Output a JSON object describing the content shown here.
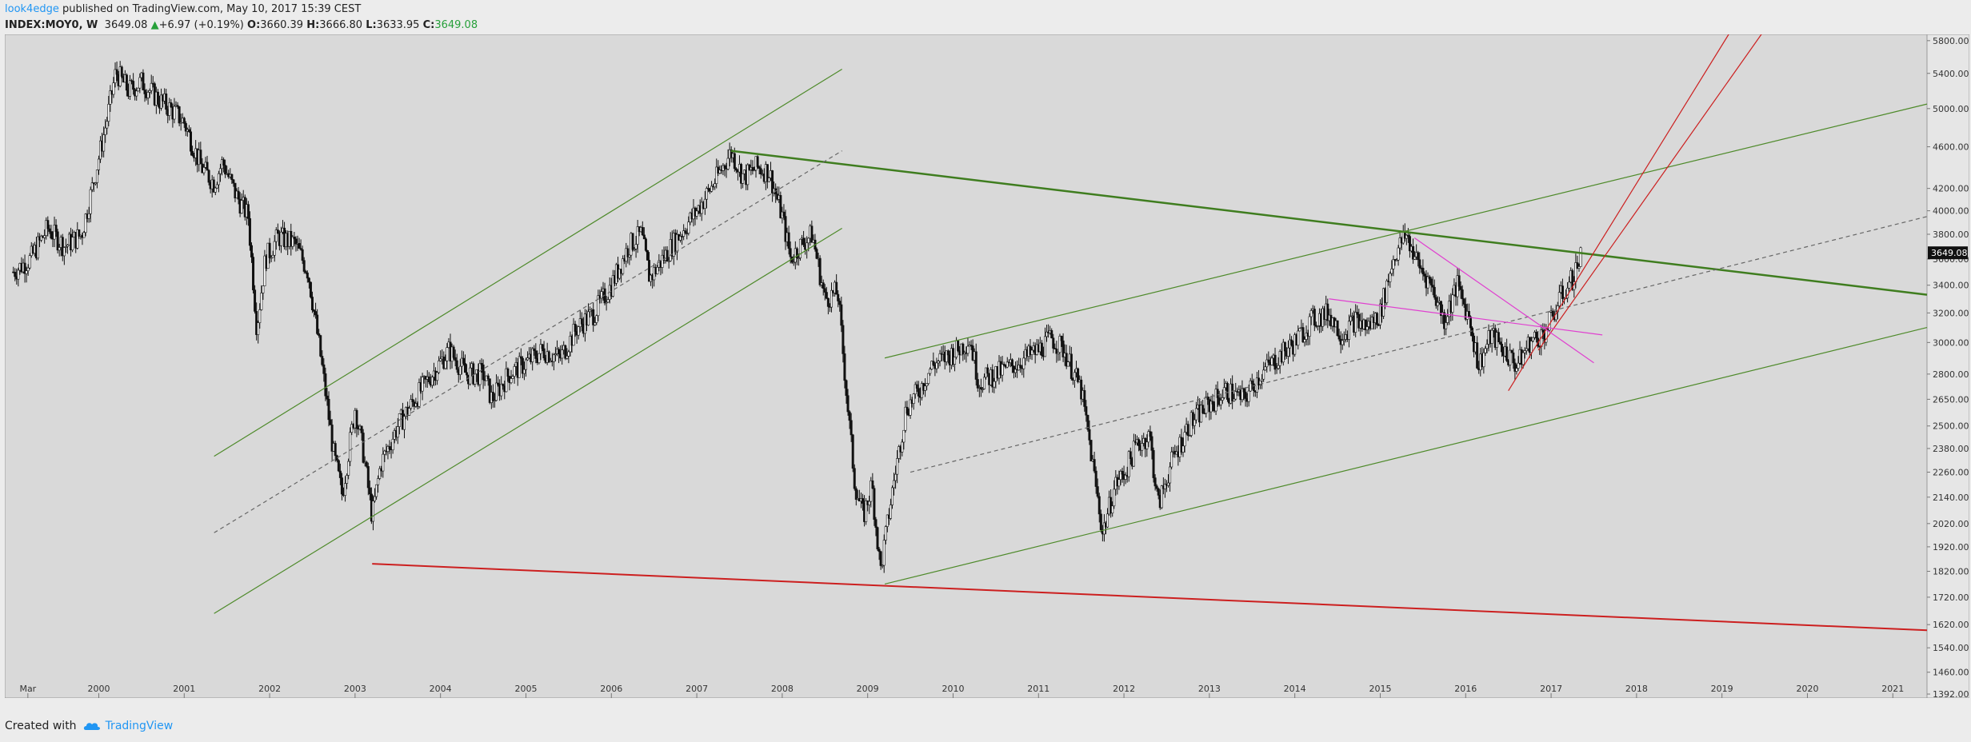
{
  "header": {
    "author": "look4edge",
    "published": " published on TradingView.com, May 10, 2017 15:39 CEST",
    "symbol": "INDEX:MOY0, W",
    "last": "3649.08",
    "change": "+6.97 (+0.19%)",
    "o_label": "O:",
    "o_val": "3660.39",
    "h_label": "H:",
    "h_val": "3666.80",
    "l_label": "L:",
    "l_val": "3633.95",
    "c_label": "C:",
    "c_val": "3649.08"
  },
  "colors": {
    "candle": "#111111",
    "up_arrow": "#27a03a",
    "channel_green": "#4e8a2a",
    "red": "#cc1f1f",
    "magenta": "#e040d0",
    "bg": "#d9d9d9"
  },
  "chart_data": {
    "type": "candlestick",
    "y_scale": "log",
    "ylim": [
      1380,
      5880
    ],
    "xlim": [
      1998.9,
      2021.4
    ],
    "x_ticks": [
      {
        "label": "Mar",
        "x": 1999.17
      },
      {
        "label": "2000",
        "x": 2000.0
      },
      {
        "label": "2001",
        "x": 2001.0
      },
      {
        "label": "2002",
        "x": 2002.0
      },
      {
        "label": "2003",
        "x": 2003.0
      },
      {
        "label": "2004",
        "x": 2004.0
      },
      {
        "label": "2005",
        "x": 2005.0
      },
      {
        "label": "2006",
        "x": 2006.0
      },
      {
        "label": "2007",
        "x": 2007.0
      },
      {
        "label": "2008",
        "x": 2008.0
      },
      {
        "label": "2009",
        "x": 2009.0
      },
      {
        "label": "2010",
        "x": 2010.0
      },
      {
        "label": "2011",
        "x": 2011.0
      },
      {
        "label": "2012",
        "x": 2012.0
      },
      {
        "label": "2013",
        "x": 2013.0
      },
      {
        "label": "2014",
        "x": 2014.0
      },
      {
        "label": "2015",
        "x": 2015.0
      },
      {
        "label": "2016",
        "x": 2016.0
      },
      {
        "label": "2017",
        "x": 2017.0
      },
      {
        "label": "2018",
        "x": 2018.0
      },
      {
        "label": "2019",
        "x": 2019.0
      },
      {
        "label": "2020",
        "x": 2020.0
      },
      {
        "label": "2021",
        "x": 2021.0
      }
    ],
    "y_ticks": [
      "5800.00",
      "5400.00",
      "5000.00",
      "4600.00",
      "4200.00",
      "4000.00",
      "3800.00",
      "3600.00",
      "3400.00",
      "3200.00",
      "3000.00",
      "2800.00",
      "2650.00",
      "2500.00",
      "2380.00",
      "2260.00",
      "2140.00",
      "2020.00",
      "1920.00",
      "1820.00",
      "1720.00",
      "1620.00",
      "1540.00",
      "1460.00",
      "1392.00"
    ],
    "last_price_label": "3649.08",
    "price_path": [
      [
        1999.0,
        3500
      ],
      [
        1999.2,
        3600
      ],
      [
        1999.4,
        3850
      ],
      [
        1999.6,
        3700
      ],
      [
        1999.8,
        3800
      ],
      [
        1999.95,
        4300
      ],
      [
        2000.1,
        4900
      ],
      [
        2000.2,
        5420
      ],
      [
        2000.35,
        5200
      ],
      [
        2000.5,
        5300
      ],
      [
        2000.7,
        5100
      ],
      [
        2000.9,
        4950
      ],
      [
        2001.0,
        4850
      ],
      [
        2001.2,
        4400
      ],
      [
        2001.35,
        4250
      ],
      [
        2001.45,
        4450
      ],
      [
        2001.6,
        4150
      ],
      [
        2001.75,
        3950
      ],
      [
        2001.85,
        3100
      ],
      [
        2001.95,
        3600
      ],
      [
        2002.1,
        3780
      ],
      [
        2002.3,
        3720
      ],
      [
        2002.45,
        3500
      ],
      [
        2002.6,
        2900
      ],
      [
        2002.75,
        2350
      ],
      [
        2002.85,
        2150
      ],
      [
        2003.0,
        2600
      ],
      [
        2003.1,
        2350
      ],
      [
        2003.2,
        2050
      ],
      [
        2003.3,
        2300
      ],
      [
        2003.5,
        2500
      ],
      [
        2003.7,
        2650
      ],
      [
        2003.9,
        2800
      ],
      [
        2004.1,
        2950
      ],
      [
        2004.3,
        2800
      ],
      [
        2004.5,
        2800
      ],
      [
        2004.6,
        2650
      ],
      [
        2004.8,
        2800
      ],
      [
        2004.95,
        2850
      ],
      [
        2005.2,
        2950
      ],
      [
        2005.4,
        2900
      ],
      [
        2005.6,
        3100
      ],
      [
        2005.8,
        3200
      ],
      [
        2006.0,
        3400
      ],
      [
        2006.2,
        3700
      ],
      [
        2006.35,
        3800
      ],
      [
        2006.45,
        3450
      ],
      [
        2006.6,
        3600
      ],
      [
        2006.8,
        3800
      ],
      [
        2007.0,
        4000
      ],
      [
        2007.2,
        4250
      ],
      [
        2007.4,
        4550
      ],
      [
        2007.55,
        4300
      ],
      [
        2007.7,
        4400
      ],
      [
        2007.85,
        4350
      ],
      [
        2008.0,
        3950
      ],
      [
        2008.1,
        3600
      ],
      [
        2008.2,
        3700
      ],
      [
        2008.35,
        3800
      ],
      [
        2008.5,
        3300
      ],
      [
        2008.65,
        3350
      ],
      [
        2008.75,
        2700
      ],
      [
        2008.85,
        2200
      ],
      [
        2008.95,
        2050
      ],
      [
        2009.05,
        2200
      ],
      [
        2009.15,
        1820
      ],
      [
        2009.3,
        2200
      ],
      [
        2009.45,
        2600
      ],
      [
        2009.6,
        2700
      ],
      [
        2009.75,
        2850
      ],
      [
        2009.9,
        2900
      ],
      [
        2010.05,
        2950
      ],
      [
        2010.2,
        3020
      ],
      [
        2010.3,
        2750
      ],
      [
        2010.5,
        2800
      ],
      [
        2010.7,
        2850
      ],
      [
        2010.85,
        2900
      ],
      [
        2011.0,
        2950
      ],
      [
        2011.15,
        3030
      ],
      [
        2011.3,
        2950
      ],
      [
        2011.5,
        2700
      ],
      [
        2011.6,
        2400
      ],
      [
        2011.75,
        1980
      ],
      [
        2011.9,
        2200
      ],
      [
        2012.0,
        2250
      ],
      [
        2012.15,
        2400
      ],
      [
        2012.3,
        2450
      ],
      [
        2012.4,
        2100
      ],
      [
        2012.55,
        2300
      ],
      [
        2012.75,
        2500
      ],
      [
        2012.95,
        2600
      ],
      [
        2013.2,
        2700
      ],
      [
        2013.4,
        2650
      ],
      [
        2013.6,
        2800
      ],
      [
        2013.8,
        2900
      ],
      [
        2014.0,
        3000
      ],
      [
        2014.2,
        3150
      ],
      [
        2014.4,
        3200
      ],
      [
        2014.55,
        3050
      ],
      [
        2014.7,
        3150
      ],
      [
        2014.85,
        3100
      ],
      [
        2015.0,
        3200
      ],
      [
        2015.15,
        3600
      ],
      [
        2015.3,
        3800
      ],
      [
        2015.45,
        3550
      ],
      [
        2015.6,
        3400
      ],
      [
        2015.75,
        3150
      ],
      [
        2015.9,
        3400
      ],
      [
        2016.05,
        3150
      ],
      [
        2016.15,
        2850
      ],
      [
        2016.3,
        3050
      ],
      [
        2016.45,
        2950
      ],
      [
        2016.6,
        2850
      ],
      [
        2016.75,
        3000
      ],
      [
        2016.9,
        3050
      ],
      [
        2017.0,
        3150
      ],
      [
        2017.1,
        3300
      ],
      [
        2017.25,
        3450
      ],
      [
        2017.36,
        3649.08
      ]
    ],
    "trendlines": [
      {
        "color": "red",
        "width": 2,
        "dash": false,
        "p1": [
          2003.2,
          1850
        ],
        "p2": [
          2021.4,
          1600
        ]
      },
      {
        "color": "green_thick",
        "width": 2.5,
        "dash": false,
        "p1": [
          2007.4,
          4560
        ],
        "p2": [
          2021.4,
          3330
        ]
      },
      {
        "color": "green",
        "width": 1.2,
        "dash": false,
        "p1": [
          2001.35,
          2340
        ],
        "p2": [
          2008.7,
          5450
        ]
      },
      {
        "color": "green",
        "width": 1.2,
        "dash": false,
        "p1": [
          2001.35,
          1660
        ],
        "p2": [
          2008.7,
          3850
        ]
      },
      {
        "color": "green",
        "width": 1.2,
        "dash": true,
        "p1": [
          2001.35,
          1980
        ],
        "p2": [
          2008.7,
          4560
        ]
      },
      {
        "color": "green",
        "width": 1.2,
        "dash": false,
        "p1": [
          2009.2,
          1770
        ],
        "p2": [
          2021.4,
          3100
        ]
      },
      {
        "color": "green",
        "width": 1.2,
        "dash": false,
        "p1": [
          2009.2,
          2900
        ],
        "p2": [
          2021.4,
          5050
        ]
      },
      {
        "color": "green",
        "width": 1.2,
        "dash": true,
        "p1": [
          2009.5,
          2260
        ],
        "p2": [
          2021.4,
          3950
        ]
      },
      {
        "color": "red",
        "width": 1.2,
        "dash": false,
        "p1": [
          2016.5,
          2700
        ],
        "p2": [
          2019.2,
          6100
        ]
      },
      {
        "color": "red",
        "width": 1.2,
        "dash": false,
        "p1": [
          2016.85,
          2950
        ],
        "p2": [
          2019.6,
          6100
        ]
      },
      {
        "color": "magenta",
        "width": 1.2,
        "dash": false,
        "p1": [
          2015.4,
          3770
        ],
        "p2": [
          2017.5,
          2870
        ]
      },
      {
        "color": "magenta",
        "width": 1.2,
        "dash": false,
        "p1": [
          2014.4,
          3300
        ],
        "p2": [
          2017.6,
          3050
        ]
      }
    ]
  },
  "footer": {
    "created_with": "Created with",
    "brand": "TradingView"
  }
}
